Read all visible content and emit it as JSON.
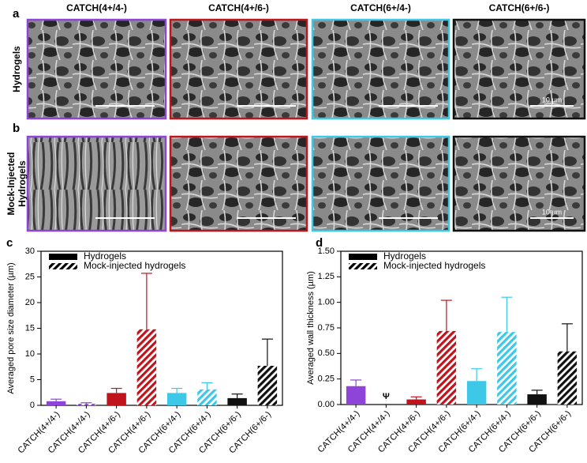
{
  "panels": {
    "a": "a",
    "b": "b",
    "c": "c",
    "d": "d"
  },
  "columns": [
    "CATCH(4+/4-)",
    "CATCH(4+/6-)",
    "CATCH(6+/4-)",
    "CATCH(6+/6-)"
  ],
  "rows": [
    {
      "lines": [
        "Hydrogels"
      ]
    },
    {
      "lines": [
        "Mock-Injected",
        "Hydrogels"
      ]
    }
  ],
  "scale_bar_label": "10 µm",
  "chart_data": [
    {
      "type": "bar",
      "y_label": "Averaged pore size diameter (µm)",
      "categories": [
        "CATCH(4+/4-)",
        "CATCH(4+/4-)",
        "CATCH(4+/6-)",
        "CATCH(4+/6-)",
        "CATCH(6+/4-)",
        "CATCH(6+/4-)",
        "CATCH(6+/6-)",
        "CATCH(6+/6-)"
      ],
      "bar_colors": [
        "#8e44d8",
        "#8e44d8",
        "#c0141c",
        "#c0141c",
        "#3ec8e8",
        "#3ec8e8",
        "#111111",
        "#111111"
      ],
      "series": [
        {
          "name": "Hydrogels",
          "color": "#000000",
          "hatched": false,
          "values": [
            0.8,
            null,
            2.4,
            null,
            2.4,
            null,
            1.4,
            null
          ],
          "errors": [
            0.4,
            null,
            0.9,
            null,
            0.9,
            null,
            0.8,
            null
          ]
        },
        {
          "name": "Mock-injected hydrogels",
          "color": "#000000",
          "hatched": true,
          "values": [
            null,
            0.3,
            null,
            14.8,
            null,
            3.1,
            null,
            7.7
          ],
          "errors": [
            null,
            0.2,
            null,
            10.9,
            null,
            1.3,
            null,
            5.2
          ]
        }
      ],
      "ylim": [
        0,
        30
      ],
      "yticks": [
        0,
        5,
        10,
        15,
        20,
        25,
        30
      ],
      "legend": "upper left"
    },
    {
      "type": "bar",
      "y_label": "Averaged wall thickness (µm)",
      "categories": [
        "CATCH(4+/4-)",
        "CATCH(4+/4-)",
        "CATCH(4+/6-)",
        "CATCH(4+/6-)",
        "CATCH(6+/4-)",
        "CATCH(6+/4-)",
        "CATCH(6+/6-)",
        "CATCH(6+/6-)"
      ],
      "bar_colors": [
        "#8e44d8",
        "#8e44d8",
        "#c0141c",
        "#c0141c",
        "#3ec8e8",
        "#3ec8e8",
        "#111111",
        "#111111"
      ],
      "series": [
        {
          "name": "Hydrogels",
          "color": "#000000",
          "hatched": false,
          "values": [
            0.18,
            null,
            0.05,
            null,
            0.23,
            null,
            0.1,
            null
          ],
          "errors": [
            0.06,
            null,
            0.025,
            null,
            0.12,
            null,
            0.04,
            null
          ]
        },
        {
          "name": "Mock-injected hydrogels",
          "color": "#000000",
          "hatched": true,
          "values": [
            null,
            null,
            null,
            0.72,
            null,
            0.71,
            null,
            0.52
          ],
          "errors": [
            null,
            null,
            null,
            0.3,
            null,
            0.34,
            null,
            0.27
          ]
        }
      ],
      "annotation": "Ψ",
      "ylim": [
        0,
        1.5
      ],
      "yticks": [
        {
          "value": 0,
          "label": "0.00"
        },
        {
          "value": 0.25,
          "label": "0.25"
        },
        {
          "value": 0.5,
          "label": "0.50"
        },
        {
          "value": 0.75,
          "label": "0.75"
        },
        {
          "value": 1,
          "label": "1.00"
        },
        {
          "value": 1.25,
          "label": "1.25"
        },
        {
          "value": 1.5,
          "label": "1.50"
        }
      ],
      "legend": "upper left"
    }
  ]
}
